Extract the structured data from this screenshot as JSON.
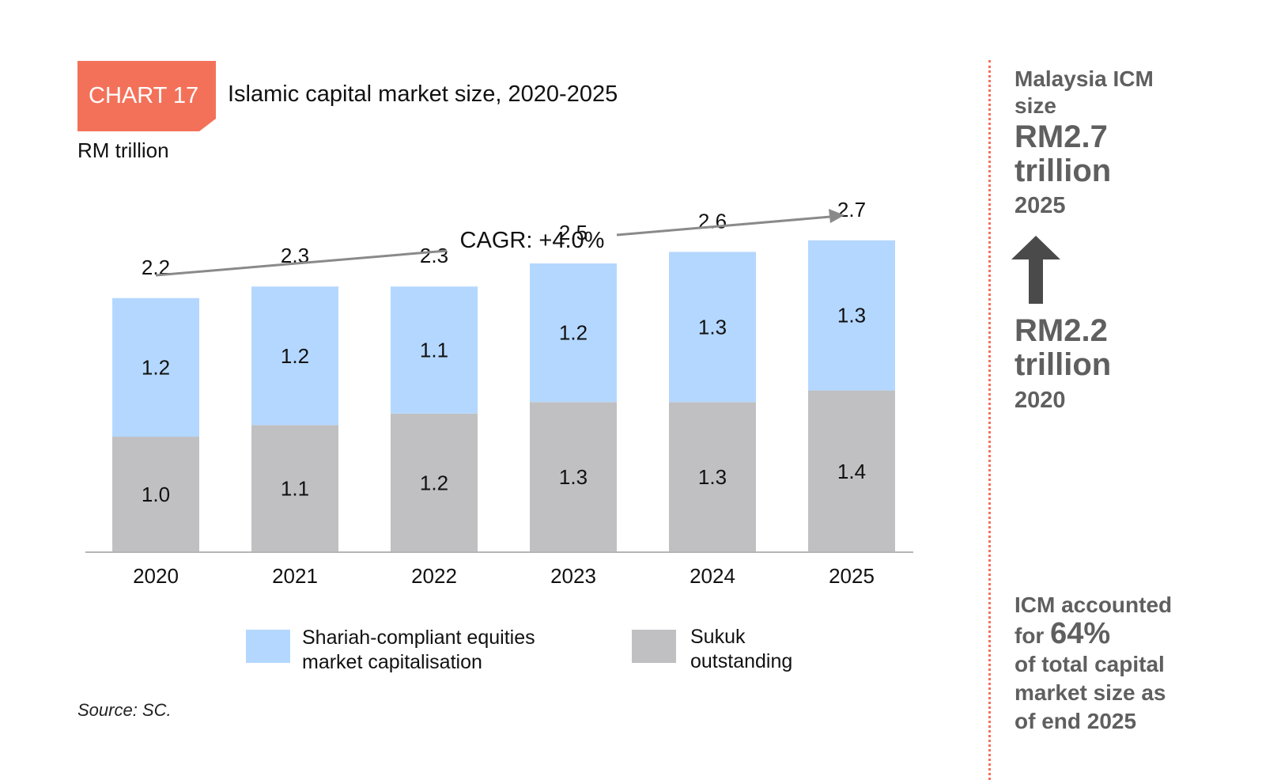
{
  "header": {
    "badge": "CHART 17",
    "title": "Islamic capital market size, 2020-2025",
    "unit": "RM trillion"
  },
  "chart_data": {
    "type": "bar",
    "stacked": true,
    "categories": [
      "2020",
      "2021",
      "2022",
      "2023",
      "2024",
      "2025"
    ],
    "series": [
      {
        "name": "Sukuk outstanding",
        "values": [
          1.0,
          1.1,
          1.2,
          1.3,
          1.3,
          1.4
        ],
        "labels": [
          "1.0",
          "1.1",
          "1.2",
          "1.3",
          "1.3",
          "1.4"
        ],
        "color": "#c0c0c2"
      },
      {
        "name": "Shariah-compliant equities market capitalisation",
        "values": [
          1.2,
          1.2,
          1.1,
          1.2,
          1.3,
          1.3
        ],
        "labels": [
          "1.2",
          "1.2",
          "1.1",
          "1.2",
          "1.3",
          "1.3"
        ],
        "color": "#b4d7ff"
      }
    ],
    "totals": [
      2.2,
      2.3,
      2.3,
      2.5,
      2.6,
      2.7
    ],
    "total_labels": [
      "2.2",
      "2.3",
      "2.3",
      "2.5",
      "2.6",
      "2.7"
    ],
    "annotation": "CAGR: +4.0%",
    "ylim": [
      0,
      3.0
    ]
  },
  "legend": {
    "equities_line1": "Shariah-compliant equities",
    "equities_line2": "market capitalisation",
    "sukuk_line1": "Sukuk",
    "sukuk_line2": "outstanding",
    "equities_color": "#b4d7ff",
    "sukuk_color": "#c0c0c2"
  },
  "source": "Source: SC.",
  "sidebar": {
    "heading_line1": "Malaysia ICM",
    "heading_line2": "size",
    "current_line1": "RM2.7",
    "current_line2": "trillion",
    "current_year": "2025",
    "previous_line1": "RM2.2",
    "previous_line2": "trillion",
    "previous_year": "2020",
    "note_line1": "ICM accounted",
    "note_for": "for",
    "note_percent": "64%",
    "note_line3": "of total capital",
    "note_line4": "market size as",
    "note_line5": "of end 2025",
    "accent_color": "#f47159",
    "text_color": "#5f5f5f"
  }
}
